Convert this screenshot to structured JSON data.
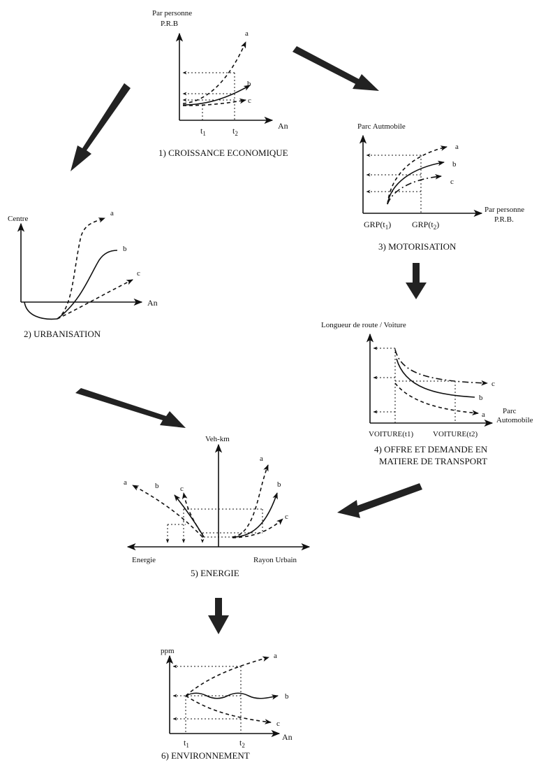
{
  "panels": {
    "p1": {
      "caption": "1) CROISSANCE ECONOMIQUE",
      "ylabel_1": "Par personne",
      "ylabel_2": "P.R.B",
      "xlabel": "An",
      "tick_1": "t",
      "tick_1_sub": "1",
      "tick_2": "t",
      "tick_2_sub": "2",
      "curve_a": "a",
      "curve_b": "b",
      "curve_c": "c"
    },
    "p2": {
      "caption": "2) URBANISATION",
      "ylabel": "Centre",
      "xlabel": "An",
      "curve_a": "a",
      "curve_b": "b",
      "curve_c": "c"
    },
    "p3": {
      "caption": "3) MOTORISATION",
      "ylabel": "Parc Autmobile",
      "xlabel_1": "Par personne",
      "xlabel_2": "P.R.B.",
      "tick_1": "GRP(t",
      "tick_1_sub": "1",
      "tick_1_end": ")",
      "tick_2": "GRP(t",
      "tick_2_sub": "2",
      "tick_2_end": ")",
      "curve_a": "a",
      "curve_b": "b",
      "curve_c": "c"
    },
    "p4": {
      "caption_1": "4) OFFRE ET DEMANDE EN",
      "caption_2": "MATIERE DE TRANSPORT",
      "ylabel": "Longueur de route / Voiture",
      "xlabel_1": "Parc",
      "xlabel_2": "Automobile",
      "tick_1": "VOITURE(t1)",
      "tick_2": "VOITURE(t2)",
      "curve_a": "a",
      "curve_b": "b",
      "curve_c": "c"
    },
    "p5": {
      "caption": "5) ENERGIE",
      "ylabel": "Veh-km",
      "xlabel_left": "Energie",
      "xlabel_right": "Rayon Urbain",
      "left_a": "a",
      "left_b": "b",
      "left_c": "c",
      "right_a": "a",
      "right_b": "b",
      "right_c": "c"
    },
    "p6": {
      "caption": "6) ENVIRONNEMENT",
      "ylabel": "ppm",
      "xlabel": "An",
      "tick_1": "t",
      "tick_1_sub": "1",
      "tick_2": "t",
      "tick_2_sub": "2",
      "curve_a": "a",
      "curve_b": "b",
      "curve_c": "c"
    }
  }
}
